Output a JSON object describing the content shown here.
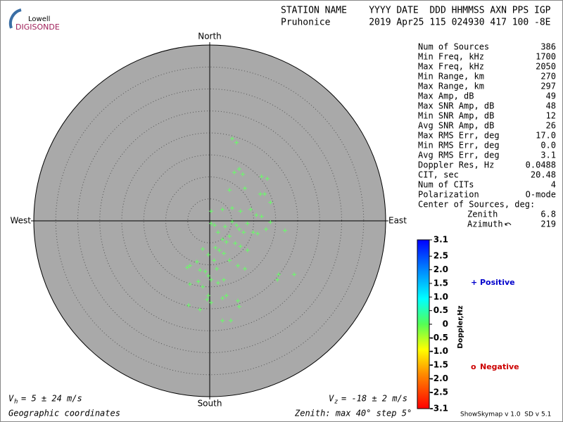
{
  "logo": {
    "top": "Lowell",
    "bottom": "DIGISONDE"
  },
  "header": {
    "labels": "STATION NAME    YYYY DATE  DDD HHMMSS AXN PPS IGP",
    "values": "Pruhonice       2019 Apr25 115 024930 417 100 -8E"
  },
  "stats": {
    "rows": [
      [
        "Num of Sources",
        "386"
      ],
      [
        "Min Freq, kHz",
        "1700"
      ],
      [
        "Max Freq, kHz",
        "2050"
      ],
      [
        "Min Range, km",
        "270"
      ],
      [
        "Max Range, km",
        "297"
      ],
      [
        "Max Amp, dB",
        "49"
      ],
      [
        "Max SNR Amp, dB",
        "48"
      ],
      [
        "Min SNR Amp, dB",
        "12"
      ],
      [
        "Avg SNR Amp, dB",
        "26"
      ],
      [
        "Max RMS Err, deg",
        "17.0"
      ],
      [
        "Min RMS Err, deg",
        "0.0"
      ],
      [
        "Avg RMS Err, deg",
        "3.1"
      ],
      [
        "Doppler Res, Hz",
        "0.0488"
      ],
      [
        "CIT, sec",
        "20.48"
      ],
      [
        "Num of CITs",
        "4"
      ],
      [
        "Polarization",
        "O-mode"
      ]
    ],
    "center": {
      "title": "Center of Sources, deg:",
      "rows": [
        [
          "Zenith",
          "6.8"
        ],
        [
          "Azimuth",
          "219"
        ]
      ]
    }
  },
  "colorbar": {
    "title": "Doppler,Hz",
    "lim": [
      -3.1,
      3.1
    ],
    "ticks": [
      3.1,
      2.5,
      {
        "value": 2,
        "label": "2.0"
      },
      1.5,
      {
        "value": 1,
        "label": "1.0"
      },
      0.5,
      0,
      -0.5,
      {
        "value": -1,
        "label": "-1.0"
      },
      -1.5,
      {
        "value": -2,
        "label": "-2.0"
      },
      -2.5,
      -3.1
    ]
  },
  "legend": {
    "positive": {
      "symbol": "+",
      "label": "Positive",
      "color": "#0000cc"
    },
    "negative": {
      "symbol": "o",
      "label": "Negative",
      "color": "#cc0000"
    }
  },
  "footer": {
    "vh": {
      "symbol": "V",
      "sub": "h",
      "text": "= 5 ± 24 m/s"
    },
    "vz": {
      "symbol": "V",
      "sub": "z",
      "text": "= -18 ± 2 m/s"
    },
    "coords": "Geographic coordinates",
    "zenith": "Zenith: max 40°  step 5°",
    "version": "ShowSkymap v 1.0  SD v 5.1"
  },
  "chart_data": {
    "type": "scatter",
    "directions": {
      "north": "North",
      "south": "South",
      "east": "East",
      "west": "West"
    },
    "rlim": [
      0,
      40
    ],
    "rticks": [
      5,
      10,
      15,
      20,
      25,
      30,
      35
    ],
    "color": "#66ff66",
    "background": "#a9a9a9",
    "x": [
      5.1,
      6.1,
      5.6,
      6.7,
      7.5,
      11.8,
      13.1,
      4.5,
      8.0,
      11.5,
      12.5,
      13.8,
      2.9,
      5.1,
      7.0,
      9.3,
      10.6,
      11.8,
      13.8,
      0.3,
      0.3,
      1.1,
      3.5,
      5.1,
      6.1,
      6.7,
      7.7,
      8.6,
      9.9,
      10.9,
      12.8,
      17.1,
      1.9,
      2.9,
      3.8,
      4.5,
      5.8,
      7.0,
      8.6,
      1.3,
      2.2,
      3.2,
      -1.6,
      -0.3,
      1.0,
      -2.9,
      -4.5,
      -5.1,
      -2.2,
      -1.0,
      -0.3,
      0.3,
      -4.5,
      -2.6,
      -1.6,
      1.9,
      3.2,
      -0.3,
      0.3,
      -0.6,
      -4.8,
      2.9,
      3.8,
      6.7,
      6.4,
      8.0,
      15.7,
      15.4,
      19.2,
      2.9,
      4.8,
      -2.2,
      6.4,
      4.5,
      1.6
    ],
    "y": [
      18.7,
      17.8,
      11.0,
      11.8,
      10.6,
      10.1,
      9.6,
      7.0,
      7.4,
      6.1,
      6.1,
      4.2,
      2.6,
      2.9,
      2.2,
      2.6,
      1.3,
      1.0,
      -0.3,
      2.2,
      -0.6,
      -1.0,
      -1.3,
      -0.2,
      -1.0,
      -1.9,
      -2.6,
      -0.6,
      -2.6,
      -2.9,
      -1.9,
      -2.2,
      -2.6,
      -4.2,
      -4.8,
      -3.5,
      -5.1,
      -5.8,
      -6.7,
      -6.1,
      -6.7,
      -7.4,
      -6.4,
      -7.7,
      -9.0,
      -9.3,
      -10.2,
      -10.6,
      -11.2,
      -11.5,
      -12.5,
      -13.4,
      -14.4,
      -13.8,
      -15.0,
      -14.1,
      -13.4,
      -17.0,
      -18.6,
      -17.9,
      -19.2,
      -17.6,
      -17.0,
      -19.5,
      -18.2,
      -10.9,
      -12.2,
      -13.4,
      -12.2,
      -22.7,
      -22.7,
      -20.2,
      -10.2,
      -9.0,
      -10.9
    ]
  }
}
